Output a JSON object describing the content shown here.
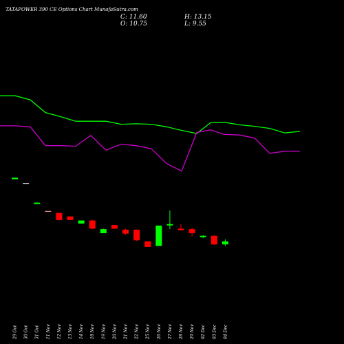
{
  "header": {
    "title": "TATAPOWER 390 CE Options Chart MunafaSutra.com",
    "close": "C: 11.60",
    "open": "O: 10.75",
    "high": "H: 13.15",
    "low": "L: 9.55"
  },
  "chart_data": {
    "type": "candlestick",
    "background": "#000000",
    "up_color": "#00ff00",
    "down_color": "#ff0000",
    "candles": [
      {
        "date": "29 Oct",
        "open": 25.6,
        "high": 25.9,
        "low": 25.6,
        "close": 25.9,
        "tick_only": false
      },
      {
        "date": "30 Oct",
        "open": 24.8,
        "high": 24.8,
        "low": 24.8,
        "close": 24.8,
        "tick_only": true
      },
      {
        "date": "31 Oct",
        "open": 20.8,
        "high": 21.1,
        "low": 20.8,
        "close": 21.0,
        "tick_only": false
      },
      {
        "date": "11 Nov",
        "open": 19.3,
        "high": 19.3,
        "low": 19.2,
        "close": 19.2,
        "tick_only": true
      },
      {
        "date": "12 Nov",
        "open": 19.0,
        "high": 19.0,
        "low": 17.5,
        "close": 17.6,
        "tick_only": false
      },
      {
        "date": "13 Nov",
        "open": 18.3,
        "high": 18.3,
        "low": 17.6,
        "close": 17.6,
        "tick_only": false
      },
      {
        "date": "14 Nov",
        "open": 16.9,
        "high": 17.5,
        "low": 16.9,
        "close": 17.5,
        "tick_only": false
      },
      {
        "date": "18 Nov",
        "open": 17.5,
        "high": 17.6,
        "low": 15.8,
        "close": 15.9,
        "tick_only": false
      },
      {
        "date": "19 Nov",
        "open": 15.0,
        "high": 15.9,
        "low": 15.0,
        "close": 15.8,
        "tick_only": false
      },
      {
        "date": "20 Nov",
        "open": 16.6,
        "high": 16.6,
        "low": 15.9,
        "close": 15.9,
        "tick_only": false
      },
      {
        "date": "21 Nov",
        "open": 15.7,
        "high": 15.9,
        "low": 14.7,
        "close": 14.9,
        "tick_only": false
      },
      {
        "date": "22 Nov",
        "open": 15.7,
        "high": 15.7,
        "low": 13.5,
        "close": 13.6,
        "tick_only": false
      },
      {
        "date": "25 Nov",
        "open": 13.4,
        "high": 13.4,
        "low": 12.3,
        "close": 12.3,
        "tick_only": false
      },
      {
        "date": "26 Nov",
        "open": 12.5,
        "high": 16.5,
        "low": 12.5,
        "close": 16.5,
        "tick_only": false
      },
      {
        "date": "27 Nov",
        "open": 16.6,
        "high": 19.5,
        "low": 15.8,
        "close": 16.8,
        "tick_only": false
      },
      {
        "date": "28 Nov",
        "open": 15.9,
        "high": 16.8,
        "low": 15.5,
        "close": 15.6,
        "tick_only": false
      },
      {
        "date": "29 Nov",
        "open": 15.8,
        "high": 16.1,
        "low": 14.4,
        "close": 15.0,
        "tick_only": false
      },
      {
        "date": "02 Dec",
        "open": 14.3,
        "high": 14.6,
        "low": 14.0,
        "close": 14.5,
        "tick_only": false
      },
      {
        "date": "03 Dec",
        "open": 14.5,
        "high": 14.6,
        "low": 12.7,
        "close": 12.8,
        "tick_only": false
      },
      {
        "date": "04 Dec",
        "open": 12.8,
        "high": 13.8,
        "low": 12.5,
        "close": 13.4,
        "tick_only": false
      }
    ],
    "lines": [
      {
        "color": "#00ff00",
        "x": [
          0,
          22,
          44,
          66,
          88,
          110,
          132,
          154,
          176,
          198,
          220,
          242,
          264,
          286,
          306,
          326,
          348,
          370,
          392,
          414,
          436
        ],
        "y": [
          42.0,
          42.0,
          41.2,
          38.7,
          37.9,
          37.0,
          37.0,
          37.0,
          36.4,
          36.5,
          36.4,
          35.9,
          35.2,
          34.6,
          36.7,
          36.8,
          36.3,
          36.0,
          35.6,
          34.7,
          35.0
        ]
      },
      {
        "color": "#cc00cc",
        "x": [
          0,
          22,
          44,
          66,
          88,
          110,
          132,
          154,
          176,
          198,
          220,
          242,
          264,
          286,
          306,
          326,
          348,
          370,
          392,
          414,
          436
        ],
        "y": [
          36.1,
          36.1,
          35.9,
          32.2,
          32.2,
          32.1,
          34.2,
          31.3,
          32.5,
          32.2,
          31.6,
          28.7,
          27.2,
          34.8,
          35.3,
          34.4,
          34.3,
          33.7,
          30.7,
          31.1,
          31.1
        ]
      }
    ],
    "ylim": [
      0,
      48.8
    ]
  }
}
